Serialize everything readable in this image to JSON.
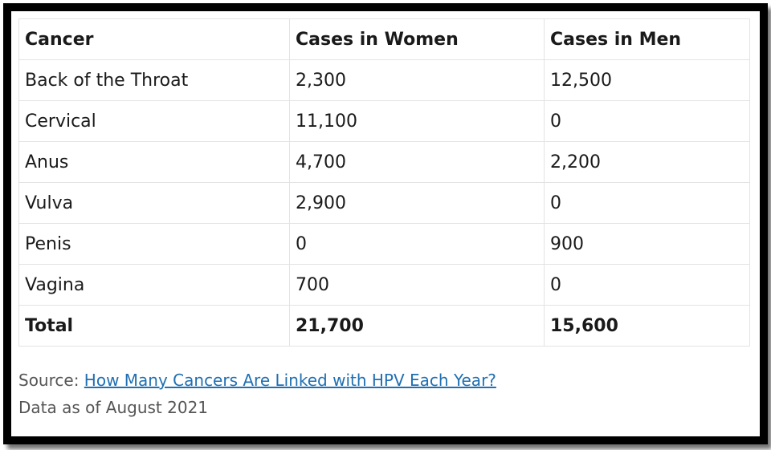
{
  "table": {
    "headers": [
      "Cancer",
      "Cases in Women",
      "Cases in Men"
    ],
    "rows": [
      [
        "Back of the Throat",
        "2,300",
        "12,500"
      ],
      [
        "Cervical",
        "11,100",
        "0"
      ],
      [
        "Anus",
        "4,700",
        "2,200"
      ],
      [
        "Vulva",
        "2,900",
        "0"
      ],
      [
        "Penis",
        "0",
        "900"
      ],
      [
        "Vagina",
        "700",
        "0"
      ]
    ],
    "total": [
      "Total",
      "21,700",
      "15,600"
    ]
  },
  "footer": {
    "source_label": "Source:",
    "source_link": "How Many Cancers Are Linked with HPV Each Year?",
    "date_note": "Data as of August 2021"
  },
  "colors": {
    "link": "#1f6fb2",
    "border": "#000000"
  }
}
